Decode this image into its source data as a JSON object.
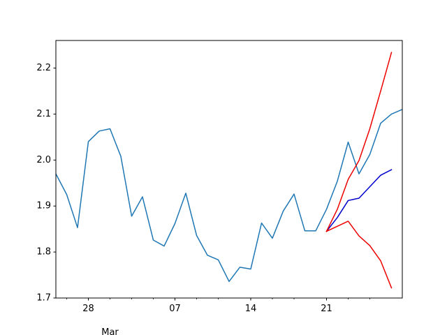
{
  "chart_data": {
    "type": "line",
    "title": "",
    "xlabel": "",
    "ylabel": "",
    "x": [
      "2024-02-25",
      "2024-02-26",
      "2024-02-27",
      "2024-02-28",
      "2024-02-29",
      "2024-03-01",
      "2024-03-02",
      "2024-03-03",
      "2024-03-04",
      "2024-03-05",
      "2024-03-06",
      "2024-03-07",
      "2024-03-08",
      "2024-03-09",
      "2024-03-10",
      "2024-03-11",
      "2024-03-12",
      "2024-03-13",
      "2024-03-14",
      "2024-03-15",
      "2024-03-16",
      "2024-03-17",
      "2024-03-18",
      "2024-03-19",
      "2024-03-20",
      "2024-03-21",
      "2024-03-22",
      "2024-03-23",
      "2024-03-24",
      "2024-03-25",
      "2024-03-26",
      "2024-03-27",
      "2024-03-28"
    ],
    "xlim": [
      "2024-02-25",
      "2024-03-28"
    ],
    "ylim": [
      1.7,
      2.26
    ],
    "grid": false,
    "series": [
      {
        "color": "#1f77b4",
        "x": [
          "2024-02-25",
          "2024-02-26",
          "2024-02-27",
          "2024-02-28",
          "2024-02-29",
          "2024-03-01",
          "2024-03-02",
          "2024-03-03",
          "2024-03-04",
          "2024-03-05",
          "2024-03-06",
          "2024-03-07",
          "2024-03-08",
          "2024-03-09",
          "2024-03-10",
          "2024-03-11",
          "2024-03-12",
          "2024-03-13",
          "2024-03-14",
          "2024-03-15",
          "2024-03-16",
          "2024-03-17",
          "2024-03-18",
          "2024-03-19",
          "2024-03-20",
          "2024-03-21",
          "2024-03-22",
          "2024-03-23",
          "2024-03-24",
          "2024-03-25",
          "2024-03-26",
          "2024-03-27",
          "2024-03-28"
        ],
        "values": [
          1.97,
          1.925,
          1.853,
          2.04,
          2.063,
          2.068,
          2.008,
          1.878,
          1.92,
          1.826,
          1.813,
          1.862,
          1.928,
          1.836,
          1.793,
          1.783,
          1.736,
          1.767,
          1.763,
          1.863,
          1.83,
          1.889,
          1.926,
          1.846,
          1.846,
          1.893,
          1.954,
          2.039,
          1.97,
          2.012,
          2.08,
          2.1,
          2.11
        ]
      },
      {
        "color": "#0000cc",
        "x": [
          "2024-03-21",
          "2024-03-22",
          "2024-03-23",
          "2024-03-24",
          "2024-03-25",
          "2024-03-26",
          "2024-03-27"
        ],
        "values": [
          1.845,
          1.875,
          1.912,
          1.917,
          1.942,
          1.967,
          1.979
        ]
      },
      {
        "color": "#ee0000",
        "x": [
          "2024-03-21",
          "2024-03-22",
          "2024-03-23",
          "2024-03-24",
          "2024-03-25",
          "2024-03-26",
          "2024-03-27"
        ],
        "values": [
          1.845,
          1.893,
          1.958,
          1.999,
          2.068,
          2.15,
          2.234
        ]
      },
      {
        "color": "#ee0000",
        "x": [
          "2024-03-21",
          "2024-03-22",
          "2024-03-23",
          "2024-03-24",
          "2024-03-25",
          "2024-03-26",
          "2024-03-27"
        ],
        "values": [
          1.845,
          1.856,
          1.867,
          1.835,
          1.814,
          1.781,
          1.722
        ]
      }
    ],
    "y_ticks": [
      "1.7",
      "1.8",
      "1.9",
      "2.0",
      "2.1",
      "2.2"
    ],
    "x_ticks": [
      {
        "date": "2024-02-28",
        "label": "28"
      },
      {
        "date": "2024-03-07",
        "label": "07"
      },
      {
        "date": "2024-03-14",
        "label": "14"
      },
      {
        "date": "2024-03-21",
        "label": "21"
      }
    ],
    "x_minor_ticks": [
      "2024-02-26",
      "2024-03-01",
      "2024-03-03",
      "2024-03-05",
      "2024-03-09",
      "2024-03-11",
      "2024-03-16",
      "2024-03-18",
      "2024-03-23",
      "2024-03-25"
    ],
    "x_secondary_label": {
      "date": "2024-03-01",
      "label": "Mar"
    }
  }
}
